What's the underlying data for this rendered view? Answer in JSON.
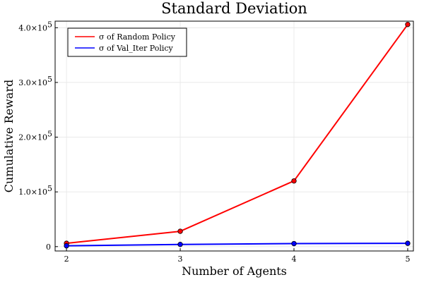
{
  "chart_data": {
    "type": "line",
    "title": "Standard Deviation",
    "xlabel": "Number of Agents",
    "ylabel": "Cumulative Reward",
    "x": [
      2,
      3,
      4,
      5
    ],
    "xlim": [
      1.9,
      5.05
    ],
    "ylim": [
      -8000,
      412000
    ],
    "x_ticks": [
      2,
      3,
      4,
      5
    ],
    "x_tick_labels": [
      "2",
      "3",
      "4",
      "5"
    ],
    "y_ticks": [
      0,
      100000,
      200000,
      300000,
      400000
    ],
    "y_tick_labels": [
      "0",
      "1.0×10",
      "2.0×10",
      "3.0×10",
      "4.0×10"
    ],
    "y_tick_exponents": [
      "",
      "5",
      "5",
      "5",
      "5"
    ],
    "grid": true,
    "legend_position": "top-left",
    "series": [
      {
        "name": "σ of Random Policy",
        "color": "#ff0000",
        "values": [
          6000,
          28000,
          120000,
          406000
        ]
      },
      {
        "name": "σ of Val_Iter Policy",
        "color": "#0000ff",
        "values": [
          1500,
          4000,
          5500,
          6000
        ]
      }
    ]
  }
}
